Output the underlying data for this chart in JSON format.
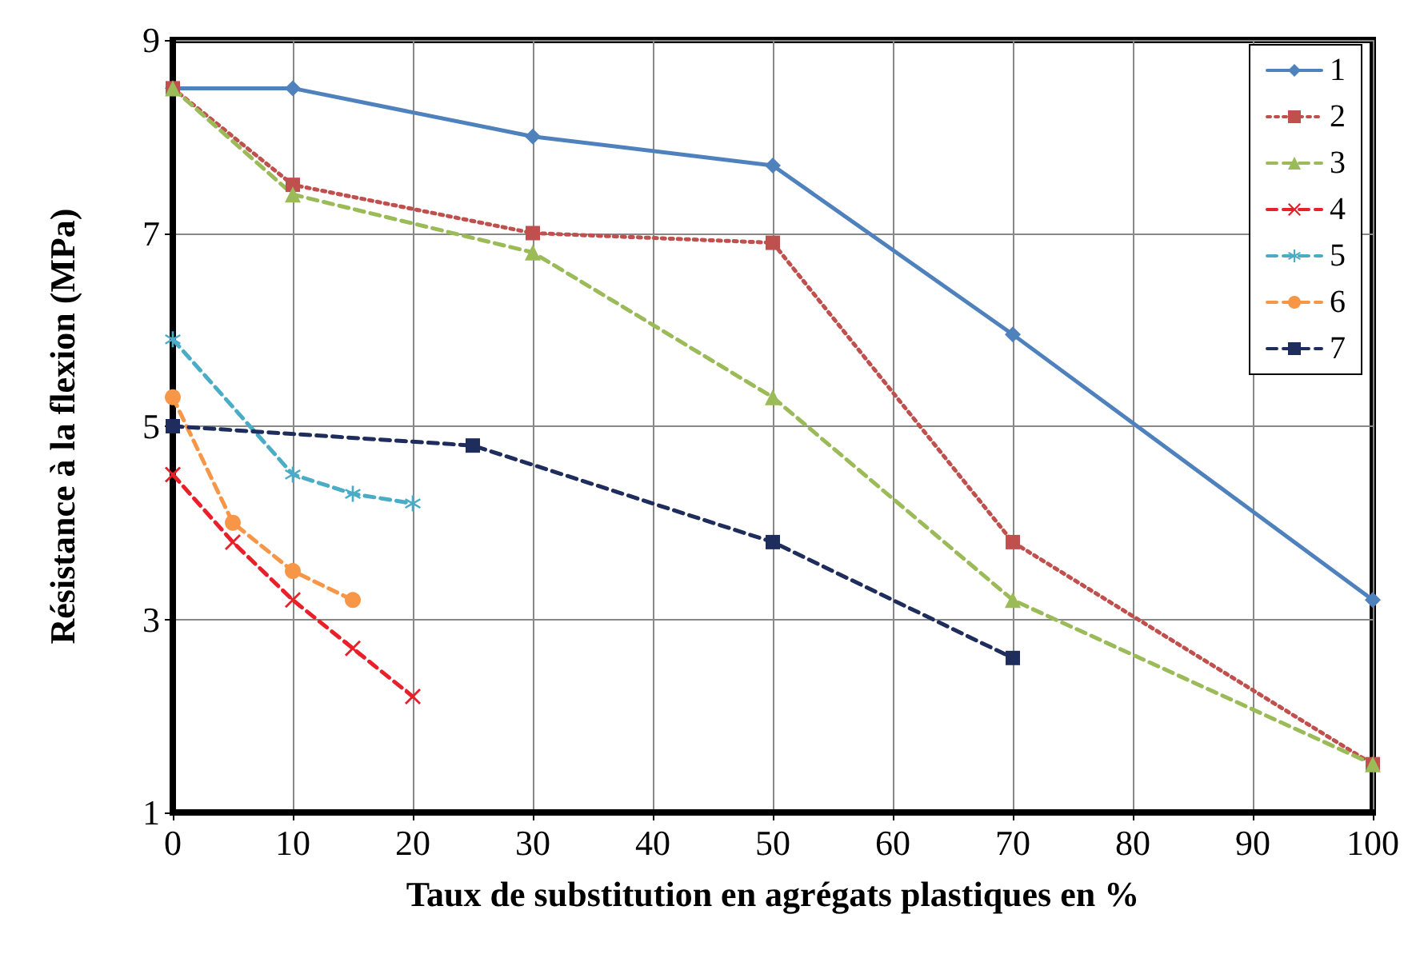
{
  "chart_data": {
    "type": "line",
    "xlabel": "Taux de substitution en agrégats plastiques en %",
    "ylabel": "Résistance à la flexion (MPa)",
    "xlim": [
      0,
      100
    ],
    "xticks": [
      0,
      10,
      20,
      30,
      40,
      50,
      60,
      70,
      80,
      90,
      100
    ],
    "ylim": [
      1,
      9
    ],
    "yticks": [
      1,
      3,
      5,
      7,
      9
    ],
    "grid": true,
    "legend": "top right",
    "series": [
      {
        "name": "1",
        "color": "#4f81bd",
        "marker": "diamond",
        "line_style": "solid",
        "x": [
          0,
          10,
          30,
          50,
          70,
          100
        ],
        "values": [
          8.5,
          8.5,
          8.0,
          7.7,
          5.95,
          3.2
        ]
      },
      {
        "name": "2",
        "color": "#c0504d",
        "marker": "square",
        "line_style": "dotted",
        "x": [
          0,
          10,
          30,
          50,
          70,
          100
        ],
        "values": [
          8.5,
          7.5,
          7.0,
          6.9,
          3.8,
          1.5
        ]
      },
      {
        "name": "3",
        "color": "#9bbb59",
        "marker": "triangle",
        "line_style": "dashed",
        "x": [
          0,
          10,
          30,
          50,
          70,
          100
        ],
        "values": [
          8.5,
          7.4,
          6.8,
          5.3,
          3.2,
          1.5
        ]
      },
      {
        "name": "4",
        "color": "#e8202a",
        "marker": "cross",
        "line_style": "dashed",
        "x": [
          0,
          5,
          10,
          15,
          20
        ],
        "values": [
          4.5,
          3.8,
          3.2,
          2.7,
          2.2
        ]
      },
      {
        "name": "5",
        "color": "#4bacc6",
        "marker": "star",
        "line_style": "dashed",
        "x": [
          0,
          10,
          15,
          20
        ],
        "values": [
          5.9,
          4.5,
          4.3,
          4.2
        ]
      },
      {
        "name": "6",
        "color": "#f79646",
        "marker": "circle",
        "line_style": "dashed",
        "x": [
          0,
          5,
          10,
          15
        ],
        "values": [
          5.3,
          4.0,
          3.5,
          3.2
        ]
      },
      {
        "name": "7",
        "color": "#1f2d5c",
        "marker": "square",
        "line_style": "dashed",
        "x": [
          0,
          25,
          50,
          70
        ],
        "values": [
          5.0,
          4.8,
          3.8,
          2.6
        ]
      }
    ]
  }
}
